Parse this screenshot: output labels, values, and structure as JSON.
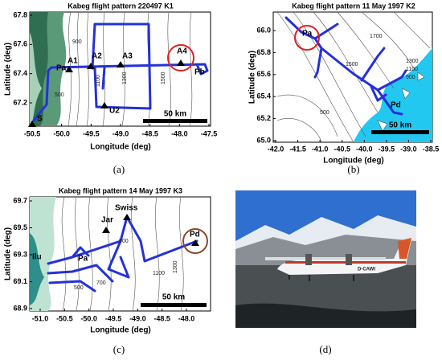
{
  "panels": [
    {
      "title": "Kabeg flight pattern 220497 K1",
      "x_label": "Longitude (deg)",
      "y_label": "Latitude (deg)",
      "xticks": [
        "-50.5",
        "-50.0",
        "-49.5",
        "-49.0",
        "-48.5",
        "-48.0",
        "-47.5"
      ],
      "yticks": [
        "67.8",
        "67.6",
        "67.4",
        "67.2"
      ],
      "labels": [
        "S",
        "Pa",
        "A1",
        "A2",
        "A3",
        "A4",
        "Pb",
        "U2"
      ],
      "contour_labels": [
        "900",
        "500",
        "1100",
        "1300",
        "1500"
      ],
      "scale": "50 km",
      "caption": "(a)"
    },
    {
      "title": "Kabeg flight pattern 11 May 1997 K2",
      "x_label": "Longitude (deg)",
      "y_label": "Latitude (deg)",
      "xticks": [
        "-42.0",
        "-41.5",
        "-41.0",
        "-40.5",
        "-40.0",
        "-39.5",
        "-39.0",
        "-38.5"
      ],
      "yticks": [
        "66.0",
        "65.8",
        "65.6",
        "65.4",
        "65.2",
        "65.0"
      ],
      "labels": [
        "Pa",
        "Pd"
      ],
      "contour_labels": [
        "1700",
        "1500",
        "1300",
        "1100",
        "900",
        "500"
      ],
      "scale": "50 km",
      "caption": "(b)"
    },
    {
      "title": "Kabeg flight pattern 14 May 1997 K3",
      "x_label": "Longitude (deg)",
      "y_label": "Latitude (deg)",
      "xticks": [
        "-51.0",
        "-50.5",
        "-50.0",
        "-49.5",
        "-49.0",
        "-48.5",
        "-48.0"
      ],
      "yticks": [
        "69.7",
        "69.5",
        "69.3",
        "69.1",
        "68.9"
      ],
      "labels": [
        "Swiss",
        "Jar",
        "Ilu",
        "Pa",
        "Pd"
      ],
      "contour_labels": [
        "900",
        "1100",
        "700",
        "500",
        "1300"
      ],
      "scale": "50 km",
      "caption": "(c)"
    },
    {
      "registration": "D-CAWI",
      "caption": "(d)"
    }
  ]
}
